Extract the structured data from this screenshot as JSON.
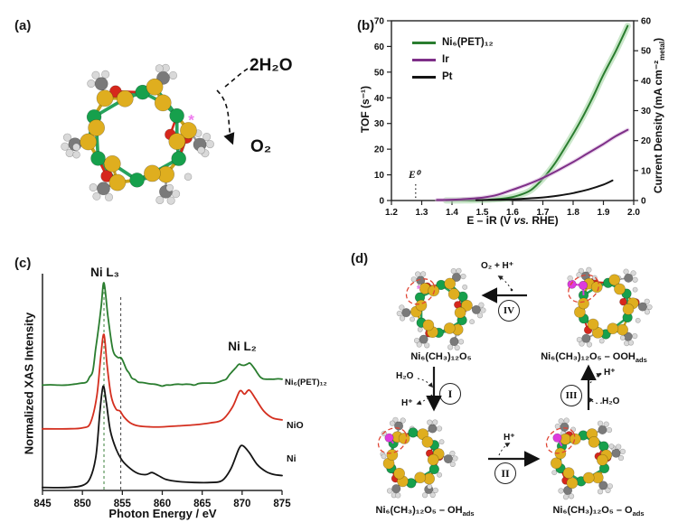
{
  "colors": {
    "accent_green": "#2a7d2f",
    "band_green": "#9fd49f",
    "accent_purple": "#7e2f88",
    "band_purple": "#d8b4dc",
    "accent_red": "#d42f1f",
    "black": "#141414",
    "atoms": {
      "nickel": "#16a04c",
      "sulfur": "#dfae1f",
      "oxygen": "#d6271c",
      "carbon": "#7a7a7a",
      "hydrogen": "#d9d9d9",
      "adsorbed_oxygen": "#de3bde",
      "bond_green": "#27a35d",
      "bond_yellow": "#c9a21b",
      "dashed_site_circle": "#e04433",
      "active_site_star": "#ee7bee"
    }
  },
  "panels": {
    "a": {
      "label": "(a)",
      "water": "2H₂O",
      "oxygen": "O₂"
    },
    "b": {
      "label": "(b)",
      "ylabel_left": "TOF (s⁻¹)",
      "ylabel_right_pre": "Current Density (mA cm⁻²",
      "ylabel_right_sub": "metal",
      "ylabel_right_post": ")",
      "xlabel_pre": "E – iR (V ",
      "xlabel_it": "vs.",
      "xlabel_post": " RHE)",
      "e0": "E⁰"
    },
    "c": {
      "label": "(c)",
      "ylabel": "Normalized XAS Intensity",
      "xlabel": "Photon Energy / eV",
      "peak_l3": "Ni L₃",
      "peak_l2": "Ni L₂"
    },
    "d": {
      "label": "(d)",
      "species": {
        "m1": {
          "main": "Ni₆(CH₃)₁₂O₅",
          "sub": ""
        },
        "m2": {
          "main": "Ni₆(CH₃)₁₂O₅ – OOH",
          "sub": "ads"
        },
        "m3": {
          "main": "Ni₆(CH₃)₁₂O₅ – OH",
          "sub": "ads"
        },
        "m4": {
          "main": "Ni₆(CH₃)₁₂O₅ – O",
          "sub": "ads"
        }
      },
      "steps": {
        "i": "I",
        "ii": "II",
        "iii": "III",
        "iv": "IV"
      },
      "arrows": {
        "o2_h": "O₂ + H⁺",
        "h2o_in_i": "H₂O",
        "h_out_i": "H⁺",
        "h_out_ii": "H⁺",
        "h_out_iii": "H⁺",
        "h2o_in_iii": "H₂O"
      }
    }
  },
  "chart_data": [
    {
      "type": "line",
      "title": "Electrocatalytic OER activity",
      "xlabel": "E – iR (V vs. RHE)",
      "ylabel_left": "TOF (s⁻¹)",
      "ylabel_right": "Current Density (mA cm⁻²metal)",
      "xlim": [
        1.2,
        2.0
      ],
      "ylim_left": [
        0,
        70
      ],
      "ylim_right": [
        0,
        60
      ],
      "xticks": [
        1.2,
        1.3,
        1.4,
        1.5,
        1.6,
        1.7,
        1.8,
        1.9,
        2.0
      ],
      "yticks_left": [
        0,
        10,
        20,
        30,
        40,
        50,
        60,
        70
      ],
      "yticks_right": [
        0,
        10,
        20,
        30,
        40,
        50,
        60
      ],
      "legend_position": "top-left",
      "grid": false,
      "annotation_e0_x": 1.28,
      "series": [
        {
          "name": "Ni₆(PET)₁₂",
          "color": "#2a7d2f",
          "band_color": "#9fd49f",
          "points": [
            [
              1.38,
              0.02
            ],
            [
              1.42,
              0.05
            ],
            [
              1.46,
              0.1
            ],
            [
              1.5,
              0.25
            ],
            [
              1.54,
              0.5
            ],
            [
              1.58,
              0.9
            ],
            [
              1.62,
              2.0
            ],
            [
              1.66,
              4.0
            ],
            [
              1.7,
              8.5
            ],
            [
              1.74,
              14.5
            ],
            [
              1.78,
              22
            ],
            [
              1.82,
              30
            ],
            [
              1.86,
              39
            ],
            [
              1.9,
              49
            ],
            [
              1.94,
              58
            ],
            [
              1.98,
              68
            ]
          ]
        },
        {
          "name": "Ir",
          "color": "#7e2f88",
          "band_color": "#d8b4dc",
          "points": [
            [
              1.35,
              0.2
            ],
            [
              1.4,
              0.3
            ],
            [
              1.45,
              0.6
            ],
            [
              1.5,
              1.1
            ],
            [
              1.55,
              2.2
            ],
            [
              1.6,
              4.2
            ],
            [
              1.65,
              6.3
            ],
            [
              1.7,
              8.8
            ],
            [
              1.75,
              11.8
            ],
            [
              1.8,
              15
            ],
            [
              1.85,
              18.5
            ],
            [
              1.9,
              22
            ],
            [
              1.94,
              25
            ],
            [
              1.98,
              27.5
            ]
          ]
        },
        {
          "name": "Pt",
          "color": "#141414",
          "band_color": "",
          "points": [
            [
              1.48,
              0.1
            ],
            [
              1.55,
              0.3
            ],
            [
              1.6,
              0.5
            ],
            [
              1.65,
              0.8
            ],
            [
              1.7,
              1.2
            ],
            [
              1.75,
              1.9
            ],
            [
              1.8,
              2.9
            ],
            [
              1.85,
              4.3
            ],
            [
              1.9,
              6.2
            ],
            [
              1.93,
              7.8
            ]
          ]
        }
      ]
    },
    {
      "type": "line",
      "title": "Ni L-edge XAS",
      "xlabel": "Photon Energy / eV",
      "ylabel": "Normalized XAS Intensity",
      "xlim": [
        845,
        875
      ],
      "xticks": [
        845,
        850,
        855,
        860,
        865,
        870,
        875
      ],
      "peak_labels": [
        "Ni L₃",
        "Ni L₂"
      ],
      "dashed_guides_eV": [
        852.7,
        854.8
      ],
      "grid": false,
      "series": [
        {
          "name": "Ni₆(PET)₁₂",
          "color": "#2a7d2f",
          "noise": true,
          "points": [
            [
              845,
              1.06
            ],
            [
              847,
              1.06
            ],
            [
              849,
              1.07
            ],
            [
              850.5,
              1.09
            ],
            [
              851.3,
              1.2
            ],
            [
              852.0,
              1.62
            ],
            [
              852.7,
              2.09
            ],
            [
              853.2,
              1.75
            ],
            [
              853.8,
              1.42
            ],
            [
              854.4,
              1.34
            ],
            [
              854.9,
              1.33
            ],
            [
              855.5,
              1.22
            ],
            [
              856.2,
              1.13
            ],
            [
              857,
              1.09
            ],
            [
              858,
              1.08
            ],
            [
              859,
              1.07
            ],
            [
              860,
              1.05
            ],
            [
              861,
              1.06
            ],
            [
              862,
              1.07
            ],
            [
              863,
              1.07
            ],
            [
              864,
              1.06
            ],
            [
              865,
              1.08
            ],
            [
              866,
              1.08
            ],
            [
              867,
              1.09
            ],
            [
              868,
              1.12
            ],
            [
              868.8,
              1.2
            ],
            [
              869.6,
              1.27
            ],
            [
              870.3,
              1.26
            ],
            [
              871.0,
              1.28
            ],
            [
              871.6,
              1.22
            ],
            [
              872.3,
              1.14
            ],
            [
              873,
              1.12
            ],
            [
              874,
              1.12
            ],
            [
              875,
              1.12
            ]
          ]
        },
        {
          "name": "NiO",
          "color": "#d42f1f",
          "noise": false,
          "points": [
            [
              845,
              0.62
            ],
            [
              848,
              0.62
            ],
            [
              850,
              0.63
            ],
            [
              851,
              0.68
            ],
            [
              851.8,
              0.95
            ],
            [
              852.3,
              1.35
            ],
            [
              852.7,
              1.57
            ],
            [
              853.1,
              1.25
            ],
            [
              853.6,
              0.95
            ],
            [
              854.2,
              0.82
            ],
            [
              854.7,
              0.8
            ],
            [
              855.2,
              0.74
            ],
            [
              856,
              0.68
            ],
            [
              857,
              0.65
            ],
            [
              858.5,
              0.64
            ],
            [
              860,
              0.64
            ],
            [
              862,
              0.65
            ],
            [
              864,
              0.66
            ],
            [
              866,
              0.68
            ],
            [
              867.5,
              0.71
            ],
            [
              868.8,
              0.84
            ],
            [
              869.7,
              1.0
            ],
            [
              870.3,
              0.97
            ],
            [
              870.9,
              1.01
            ],
            [
              871.7,
              0.92
            ],
            [
              872.7,
              0.8
            ],
            [
              873.8,
              0.73
            ],
            [
              875,
              0.71
            ]
          ]
        },
        {
          "name": "Ni",
          "color": "#141414",
          "noise": false,
          "points": [
            [
              845,
              0.03
            ],
            [
              848,
              0.03
            ],
            [
              850,
              0.05
            ],
            [
              851,
              0.13
            ],
            [
              851.7,
              0.35
            ],
            [
              852.2,
              0.8
            ],
            [
              852.6,
              1.05
            ],
            [
              853.0,
              0.88
            ],
            [
              853.5,
              0.6
            ],
            [
              854.2,
              0.42
            ],
            [
              855,
              0.3
            ],
            [
              856,
              0.22
            ],
            [
              857,
              0.17
            ],
            [
              858,
              0.16
            ],
            [
              858.7,
              0.18
            ],
            [
              859.5,
              0.15
            ],
            [
              860.5,
              0.11
            ],
            [
              862,
              0.09
            ],
            [
              864,
              0.08
            ],
            [
              866,
              0.08
            ],
            [
              867.5,
              0.1
            ],
            [
              868.6,
              0.22
            ],
            [
              869.6,
              0.42
            ],
            [
              870.1,
              0.45
            ],
            [
              870.9,
              0.38
            ],
            [
              871.9,
              0.26
            ],
            [
              873,
              0.19
            ],
            [
              874,
              0.16
            ],
            [
              875,
              0.15
            ]
          ]
        }
      ]
    }
  ]
}
